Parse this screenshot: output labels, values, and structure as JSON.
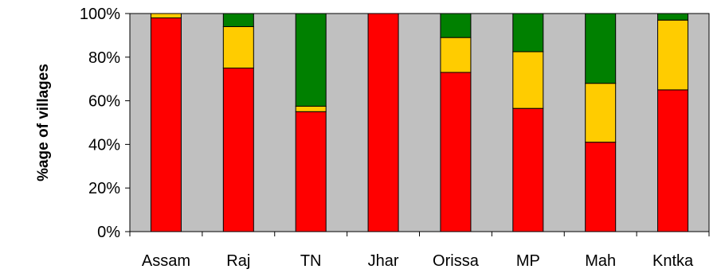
{
  "chart_data": {
    "type": "bar",
    "stacked": true,
    "normalized": true,
    "title": "",
    "xlabel": "",
    "ylabel": "%age of villages",
    "ylim": [
      0,
      100
    ],
    "yticks": [
      "0%",
      "20%",
      "40%",
      "60%",
      "80%",
      "100%"
    ],
    "grid": false,
    "plot_background": "#c0c0c0",
    "legend": "none",
    "categories": [
      "Assam",
      "Raj",
      "TN",
      "Jhar",
      "Orissa",
      "MP",
      "Mah",
      "Kntka"
    ],
    "series": [
      {
        "color": "#ff0000",
        "values": [
          98,
          75,
          55,
          100,
          73,
          56.5,
          41,
          65
        ]
      },
      {
        "color": "#ffcc00",
        "values": [
          2,
          19,
          2.5,
          0,
          16,
          26,
          27,
          32
        ]
      },
      {
        "color": "#008000",
        "values": [
          0,
          6,
          42.5,
          0,
          11,
          17.5,
          32,
          3
        ]
      }
    ]
  }
}
